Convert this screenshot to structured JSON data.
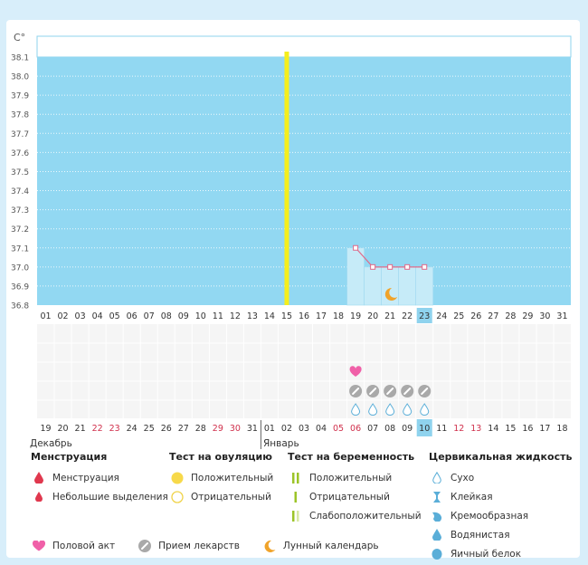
{
  "chart_data": {
    "type": "line",
    "unit_label": "C°",
    "y_ticks": [
      "38.1",
      "38.0",
      "37.9",
      "37.8",
      "37.7",
      "37.6",
      "37.5",
      "37.4",
      "37.3",
      "37.2",
      "37.1",
      "37.0",
      "36.9",
      "36.8"
    ],
    "ylim": [
      36.8,
      38.1
    ],
    "cycle_days": [
      "01",
      "02",
      "03",
      "04",
      "05",
      "06",
      "07",
      "08",
      "09",
      "10",
      "11",
      "12",
      "13",
      "14",
      "15",
      "16",
      "17",
      "18",
      "19",
      "20",
      "21",
      "22",
      "23",
      "24",
      "25",
      "26",
      "27",
      "28",
      "29",
      "30",
      "31"
    ],
    "temps": [
      {
        "day": 19,
        "value": 37.1
      },
      {
        "day": 20,
        "value": 37.0
      },
      {
        "day": 21,
        "value": 37.0
      },
      {
        "day": 22,
        "value": 37.0
      },
      {
        "day": 23,
        "value": 37.0
      }
    ],
    "ovulation_day": 15,
    "today_day": 23,
    "heart_day": 19,
    "moon_day": 21,
    "med_days": [
      19,
      20,
      21,
      22,
      23
    ],
    "fluid_days": [
      19,
      20,
      21,
      22,
      23
    ],
    "dates": [
      "19",
      "20",
      "21",
      "22",
      "23",
      "24",
      "25",
      "26",
      "27",
      "28",
      "29",
      "30",
      "31",
      "01",
      "02",
      "03",
      "04",
      "05",
      "06",
      "07",
      "08",
      "09",
      "10",
      "11",
      "12",
      "13",
      "14",
      "15",
      "16",
      "17",
      "18"
    ],
    "red_dates_idx": [
      3,
      4,
      10,
      11,
      17,
      18,
      24,
      25
    ],
    "today_date_idx": 22,
    "months": [
      "Декабрь",
      "Январь"
    ]
  },
  "colors": {
    "fill": "#92d8f2",
    "ovulation": "#f5ee1c",
    "line": "#e06a8a",
    "today": "#8fd3ee",
    "red": "#d0304c"
  },
  "legend": {
    "menstruation": {
      "title": "Менструация",
      "items": [
        "Менструация",
        "Небольшие выделения"
      ]
    },
    "ovulation_test": {
      "title": "Тест на овуляцию",
      "items": [
        "Положительный",
        "Отрицательный"
      ]
    },
    "pregnancy_test": {
      "title": "Тест на беременность",
      "items": [
        "Положительный",
        "Отрицательный",
        "Слабоположительный"
      ]
    },
    "cervical_fluid": {
      "title": "Цервикальная жидкость",
      "items": [
        "Сухо",
        "Клейкая",
        "Кремообразная",
        "Водянистая",
        "Яичный белок"
      ]
    },
    "bottom": [
      "Половой акт",
      "Прием лекарств",
      "Лунный календарь"
    ]
  }
}
